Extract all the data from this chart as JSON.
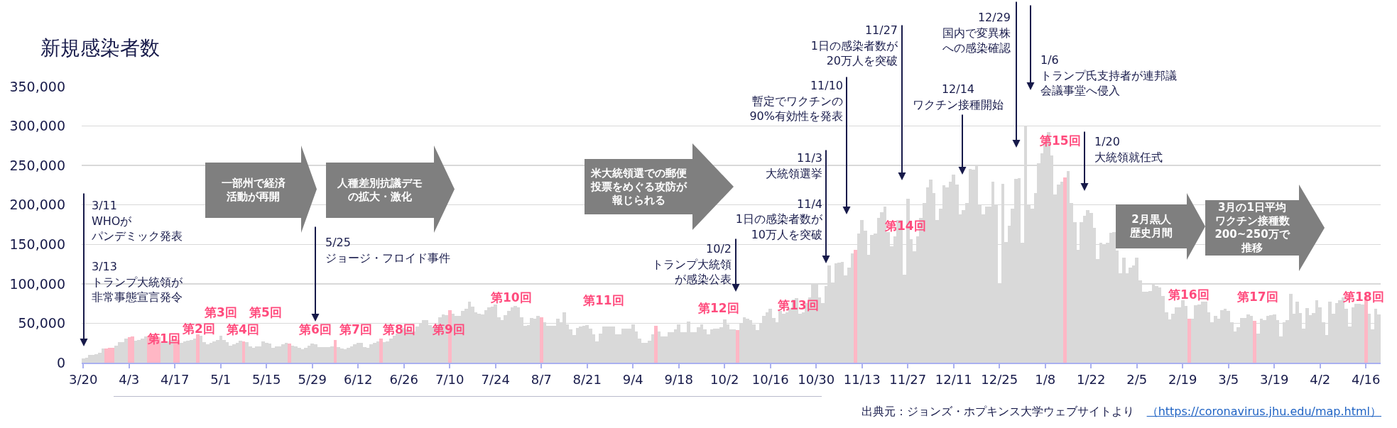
{
  "chart_data": {
    "type": "bar",
    "title": "新規感染者数",
    "categories": [
      "3/20",
      null,
      null,
      null,
      null,
      null,
      null,
      null,
      null,
      null,
      null,
      null,
      null,
      null,
      "4/3",
      null,
      null,
      null,
      null,
      null,
      null,
      null,
      null,
      null,
      null,
      null,
      null,
      null,
      "4/17",
      null,
      null,
      null,
      null,
      null,
      null,
      null,
      null,
      null,
      null,
      null,
      null,
      null,
      "5/1",
      null,
      null,
      null,
      null,
      null,
      null,
      null,
      null,
      null,
      null,
      null,
      null,
      null,
      "5/15",
      null,
      null,
      null,
      null,
      null,
      null,
      null,
      null,
      null,
      null,
      null,
      null,
      null,
      "5/29",
      null,
      null,
      null,
      null,
      null,
      null,
      null,
      null,
      null,
      null,
      null,
      null,
      null,
      "6/12",
      null,
      null,
      null,
      null,
      null,
      null,
      null,
      null,
      null,
      null,
      null,
      null,
      null,
      "6/26",
      null,
      null,
      null,
      null,
      null,
      null,
      null,
      null,
      null,
      null,
      null,
      null,
      null,
      "7/10",
      null,
      null,
      null,
      null,
      null,
      null,
      null,
      null,
      null,
      null,
      null,
      null,
      null,
      "7/24",
      null,
      null,
      null,
      null,
      null,
      null,
      null,
      null,
      null,
      null,
      null,
      null,
      null,
      "8/7",
      null,
      null,
      null,
      null,
      null,
      null,
      null,
      null,
      null,
      null,
      null,
      null,
      null,
      "8/21",
      null,
      null,
      null,
      null,
      null,
      null,
      null,
      null,
      null,
      null,
      null,
      null,
      null,
      "9/4",
      null,
      null,
      null,
      null,
      null,
      null,
      null,
      null,
      null,
      null,
      null,
      null,
      null,
      "9/18",
      null,
      null,
      null,
      null,
      null,
      null,
      null,
      null,
      null,
      null,
      null,
      null,
      null,
      "10/2",
      null,
      null,
      null,
      null,
      null,
      null,
      null,
      null,
      null,
      null,
      null,
      null,
      null,
      "10/16",
      null,
      null,
      null,
      null,
      null,
      null,
      null,
      null,
      null,
      null,
      null,
      null,
      null,
      "10/30",
      null,
      null,
      null,
      null,
      null,
      null,
      null,
      null,
      null,
      null,
      null,
      null,
      null,
      "11/13",
      null,
      null,
      null,
      null,
      null,
      null,
      null,
      null,
      null,
      null,
      null,
      null,
      null,
      "11/27",
      null,
      null,
      null,
      null,
      null,
      null,
      null,
      null,
      null,
      null,
      null,
      null,
      null,
      "12/11",
      null,
      null,
      null,
      null,
      null,
      null,
      null,
      null,
      null,
      null,
      null,
      null,
      null,
      "12/25",
      null,
      null,
      null,
      null,
      null,
      null,
      null,
      null,
      null,
      null,
      null,
      null,
      null,
      "1/8",
      null,
      null,
      null,
      null,
      null,
      null,
      null,
      null,
      null,
      null,
      null,
      null,
      null,
      "1/22",
      null,
      null,
      null,
      null,
      null,
      null,
      null,
      null,
      null,
      null,
      null,
      null,
      null,
      "2/5",
      null,
      null,
      null,
      null,
      null,
      null,
      null,
      null,
      null,
      null,
      null,
      null,
      null,
      "2/19",
      null,
      null,
      null,
      null,
      null,
      null,
      null,
      null,
      null,
      null,
      null,
      null,
      null,
      "3/5",
      null,
      null,
      null,
      null,
      null,
      null,
      null,
      null,
      null,
      null,
      null,
      null,
      null,
      "3/19",
      null,
      null,
      null,
      null,
      null,
      null,
      null,
      null,
      null,
      null,
      null,
      null,
      null,
      "4/2",
      null,
      null,
      null,
      null,
      null,
      null,
      null,
      null,
      null,
      null,
      null,
      null,
      null,
      "4/16",
      null,
      null,
      null,
      null
    ],
    "values": [
      5000,
      6000,
      10000,
      10000,
      11000,
      13000,
      18000,
      18000,
      19000,
      19000,
      22000,
      26000,
      26000,
      31000,
      32000,
      33000,
      28000,
      29000,
      31000,
      33000,
      34000,
      34000,
      33000,
      32000,
      26000,
      26000,
      27000,
      29000,
      30000,
      29000,
      25000,
      27000,
      28000,
      29000,
      31000,
      36000,
      34000,
      26000,
      23000,
      25000,
      27000,
      29000,
      34000,
      29000,
      26000,
      22000,
      23000,
      25000,
      28000,
      27000,
      26000,
      21000,
      19000,
      21000,
      21000,
      27000,
      25000,
      24000,
      19000,
      21000,
      21000,
      23000,
      25000,
      24000,
      22000,
      21000,
      19000,
      17000,
      19000,
      22000,
      24000,
      23000,
      20000,
      20000,
      20000,
      20000,
      21000,
      29000,
      20000,
      18000,
      17000,
      19000,
      21000,
      23000,
      25000,
      25000,
      20000,
      19000,
      23000,
      25000,
      27000,
      31000,
      26000,
      27000,
      31000,
      34000,
      37000,
      38000,
      44000,
      42000,
      41000,
      40000,
      46000,
      50000,
      54000,
      54000,
      48000,
      45000,
      48000,
      58000,
      61000,
      60000,
      67000,
      62000,
      59000,
      59000,
      66000,
      68000,
      77000,
      71000,
      64000,
      62000,
      61000,
      67000,
      70000,
      71000,
      74000,
      58000,
      54000,
      60000,
      66000,
      70000,
      72000,
      70000,
      58000,
      47000,
      48000,
      57000,
      56000,
      59000,
      58000,
      51000,
      47000,
      47000,
      47000,
      56000,
      51000,
      64000,
      49000,
      42000,
      35000,
      44000,
      46000,
      47000,
      48000,
      43000,
      36000,
      27000,
      37000,
      46000,
      46000,
      46000,
      46000,
      36000,
      36000,
      43000,
      43000,
      43000,
      49000,
      40000,
      31000,
      25000,
      25000,
      28000,
      36000,
      47000,
      40000,
      33000,
      33000,
      39000,
      39000,
      42000,
      49000,
      39000,
      39000,
      52000,
      39000,
      39000,
      45000,
      49000,
      42000,
      36000,
      42000,
      43000,
      43000,
      45000,
      55000,
      49000,
      42000,
      42000,
      41000,
      50000,
      58000,
      56000,
      54000,
      49000,
      41000,
      50000,
      59000,
      64000,
      68000,
      57000,
      51000,
      66000,
      62000,
      64000,
      69000,
      80000,
      82000,
      62000,
      64000,
      76000,
      83000,
      99000,
      100000,
      83000,
      76000,
      97000,
      123000,
      102000,
      126000,
      127000,
      128000,
      111000,
      121000,
      139000,
      143000,
      164000,
      181000,
      167000,
      137000,
      162000,
      164000,
      184000,
      191000,
      198000,
      166000,
      148000,
      160000,
      181000,
      181000,
      112000,
      208000,
      157000,
      141000,
      160000,
      184000,
      202000,
      222000,
      232000,
      215000,
      181000,
      195000,
      225000,
      222000,
      229000,
      238000,
      226000,
      188000,
      193000,
      202000,
      246000,
      245000,
      250000,
      200000,
      188000,
      198000,
      198000,
      229000,
      200000,
      99000,
      227000,
      153000,
      174000,
      195000,
      233000,
      234000,
      152000,
      300000,
      200000,
      195000,
      215000,
      253000,
      265000,
      277000,
      292000,
      263000,
      213000,
      226000,
      229000,
      235000,
      243000,
      202000,
      178000,
      143000,
      178000,
      186000,
      193000,
      190000,
      171000,
      131000,
      152000,
      150000,
      152000,
      165000,
      166000,
      142000,
      113000,
      133000,
      113000,
      121000,
      123000,
      133000,
      104000,
      90000,
      90000,
      91000,
      99000,
      97000,
      95000,
      85000,
      64000,
      55000,
      62000,
      70000,
      70000,
      79000,
      72000,
      56000,
      56000,
      73000,
      74000,
      77000,
      77000,
      64000,
      51000,
      59000,
      56000,
      67000,
      68000,
      66000,
      51000,
      40000,
      45000,
      57000,
      57000,
      61000,
      59000,
      53000,
      37000,
      56000,
      54000,
      59000,
      60000,
      61000,
      54000,
      33000,
      51000,
      54000,
      87000,
      62000,
      77000,
      63000,
      43000,
      69000,
      60000,
      63000,
      79000,
      70000,
      51000,
      35000,
      77000,
      62000,
      76000,
      79000,
      83000,
      68000,
      46000,
      70000,
      75000,
      75000,
      74000,
      85000,
      62000,
      42000,
      68000,
      61000
    ],
    "colors": [
      "#d9d9d9",
      "#d9d9d9",
      "#d9d9d9",
      "#d9d9d9",
      "#d9d9d9",
      "#d9d9d9",
      "#d9d9d9",
      "#ffb7c5",
      "#ffb7c5",
      "#ffb7c5",
      "#d9d9d9",
      "#d9d9d9",
      "#d9d9d9",
      "#d9d9d9",
      "#ffb7c5",
      "#ffb7c5",
      "#d9d9d9",
      "#d9d9d9",
      "#d9d9d9",
      "#d9d9d9",
      "#ffb7c5",
      "#ffb7c5",
      "#ffb7c5",
      "#ffb7c5",
      "#d9d9d9",
      "#d9d9d9",
      "#d9d9d9",
      "#d9d9d9",
      "#ffb7c5",
      "#ffb7c5",
      "#d9d9d9",
      "#d9d9d9",
      "#d9d9d9",
      "#d9d9d9",
      "#d9d9d9",
      "#ffb7c5",
      "#d9d9d9",
      "#d9d9d9",
      "#d9d9d9",
      "#d9d9d9",
      "#d9d9d9",
      "#d9d9d9",
      "#d9d9d9",
      "#d9d9d9",
      "#d9d9d9",
      "#d9d9d9",
      "#d9d9d9",
      "#d9d9d9",
      "#d9d9d9",
      "#ffb7c5",
      "#d9d9d9",
      "#d9d9d9",
      "#d9d9d9",
      "#d9d9d9",
      "#d9d9d9",
      "#d9d9d9",
      "#d9d9d9",
      "#d9d9d9",
      "#d9d9d9",
      "#d9d9d9",
      "#d9d9d9",
      "#d9d9d9",
      "#d9d9d9",
      "#ffb7c5",
      "#d9d9d9",
      "#d9d9d9",
      "#d9d9d9",
      "#d9d9d9",
      "#d9d9d9",
      "#d9d9d9",
      "#d9d9d9",
      "#d9d9d9",
      "#d9d9d9",
      "#d9d9d9",
      "#d9d9d9",
      "#d9d9d9",
      "#d9d9d9",
      "#ffb7c5",
      "#d9d9d9",
      "#d9d9d9",
      "#d9d9d9",
      "#d9d9d9",
      "#d9d9d9",
      "#d9d9d9",
      "#d9d9d9",
      "#d9d9d9",
      "#d9d9d9",
      "#d9d9d9",
      "#d9d9d9",
      "#d9d9d9",
      "#d9d9d9",
      "#ffb7c5",
      "#d9d9d9",
      "#d9d9d9",
      "#d9d9d9",
      "#d9d9d9",
      "#d9d9d9",
      "#d9d9d9",
      "#d9d9d9",
      "#d9d9d9",
      "#d9d9d9",
      "#d9d9d9",
      "#d9d9d9",
      "#d9d9d9",
      "#d9d9d9",
      "#d9d9d9",
      "#d9d9d9",
      "#d9d9d9",
      "#d9d9d9",
      "#d9d9d9",
      "#d9d9d9",
      "#d9d9d9",
      "#ffb7c5",
      "#d9d9d9",
      "#d9d9d9",
      "#d9d9d9",
      "#d9d9d9",
      "#d9d9d9",
      "#d9d9d9",
      "#d9d9d9",
      "#d9d9d9",
      "#d9d9d9",
      "#d9d9d9",
      "#d9d9d9",
      "#d9d9d9",
      "#d9d9d9",
      "#d9d9d9",
      "#d9d9d9",
      "#d9d9d9",
      "#d9d9d9",
      "#d9d9d9",
      "#d9d9d9",
      "#d9d9d9",
      "#d9d9d9",
      "#d9d9d9",
      "#d9d9d9",
      "#d9d9d9",
      "#d9d9d9",
      "#d9d9d9",
      "#d9d9d9",
      "#ffb7c5",
      "#d9d9d9",
      "#d9d9d9",
      "#d9d9d9",
      "#d9d9d9",
      "#d9d9d9",
      "#d9d9d9",
      "#d9d9d9",
      "#d9d9d9",
      "#d9d9d9",
      "#d9d9d9",
      "#d9d9d9",
      "#d9d9d9",
      "#d9d9d9",
      "#d9d9d9",
      "#d9d9d9",
      "#d9d9d9",
      "#d9d9d9",
      "#d9d9d9",
      "#d9d9d9",
      "#d9d9d9",
      "#d9d9d9",
      "#d9d9d9",
      "#d9d9d9",
      "#d9d9d9",
      "#d9d9d9",
      "#d9d9d9",
      "#d9d9d9",
      "#d9d9d9",
      "#d9d9d9",
      "#d9d9d9",
      "#d9d9d9",
      "#d9d9d9",
      "#d9d9d9",
      "#d9d9d9",
      "#ffb7c5",
      "#d9d9d9",
      "#d9d9d9",
      "#d9d9d9",
      "#d9d9d9",
      "#d9d9d9",
      "#d9d9d9",
      "#d9d9d9",
      "#d9d9d9",
      "#d9d9d9",
      "#d9d9d9",
      "#d9d9d9",
      "#d9d9d9",
      "#d9d9d9",
      "#d9d9d9",
      "#d9d9d9",
      "#d9d9d9",
      "#d9d9d9",
      "#d9d9d9",
      "#d9d9d9",
      "#d9d9d9",
      "#d9d9d9",
      "#d9d9d9",
      "#d9d9d9",
      "#d9d9d9",
      "#ffb7c5",
      "#d9d9d9",
      "#d9d9d9",
      "#d9d9d9",
      "#d9d9d9",
      "#d9d9d9",
      "#d9d9d9",
      "#d9d9d9",
      "#d9d9d9",
      "#d9d9d9",
      "#d9d9d9",
      "#d9d9d9",
      "#d9d9d9",
      "#d9d9d9",
      "#d9d9d9",
      "#d9d9d9",
      "#d9d9d9",
      "#d9d9d9",
      "#d9d9d9",
      "#d9d9d9",
      "#d9d9d9",
      "#d9d9d9",
      "#d9d9d9",
      "#d9d9d9",
      "#d9d9d9",
      "#d9d9d9",
      "#d9d9d9",
      "#d9d9d9",
      "#d9d9d9",
      "#d9d9d9",
      "#d9d9d9",
      "#d9d9d9",
      "#d9d9d9",
      "#d9d9d9",
      "#d9d9d9",
      "#d9d9d9",
      "#ffb7c5",
      "#d9d9d9",
      "#d9d9d9",
      "#d9d9d9",
      "#d9d9d9",
      "#d9d9d9",
      "#d9d9d9",
      "#d9d9d9",
      "#d9d9d9",
      "#d9d9d9",
      "#d9d9d9",
      "#d9d9d9",
      "#d9d9d9",
      "#d9d9d9",
      "#d9d9d9",
      "#d9d9d9",
      "#d9d9d9",
      "#d9d9d9",
      "#d9d9d9",
      "#d9d9d9",
      "#d9d9d9",
      "#d9d9d9",
      "#d9d9d9",
      "#d9d9d9",
      "#d9d9d9",
      "#d9d9d9",
      "#d9d9d9",
      "#d9d9d9",
      "#d9d9d9",
      "#d9d9d9",
      "#d9d9d9",
      "#d9d9d9",
      "#d9d9d9",
      "#d9d9d9",
      "#d9d9d9",
      "#d9d9d9",
      "#d9d9d9",
      "#d9d9d9",
      "#d9d9d9",
      "#d9d9d9",
      "#d9d9d9",
      "#d9d9d9",
      "#d9d9d9",
      "#d9d9d9",
      "#d9d9d9",
      "#d9d9d9",
      "#d9d9d9",
      "#d9d9d9",
      "#d9d9d9",
      "#d9d9d9",
      "#d9d9d9",
      "#d9d9d9",
      "#d9d9d9",
      "#d9d9d9",
      "#d9d9d9",
      "#d9d9d9",
      "#d9d9d9",
      "#d9d9d9",
      "#d9d9d9",
      "#d9d9d9",
      "#d9d9d9",
      "#d9d9d9",
      "#d9d9d9",
      "#d9d9d9",
      "#ffb7c5",
      "#d9d9d9",
      "#d9d9d9",
      "#d9d9d9",
      "#d9d9d9",
      "#d9d9d9",
      "#d9d9d9",
      "#d9d9d9",
      "#d9d9d9",
      "#d9d9d9",
      "#d9d9d9",
      "#d9d9d9",
      "#d9d9d9",
      "#d9d9d9",
      "#d9d9d9",
      "#d9d9d9",
      "#d9d9d9",
      "#d9d9d9",
      "#d9d9d9",
      "#d9d9d9",
      "#d9d9d9",
      "#d9d9d9",
      "#d9d9d9",
      "#d9d9d9",
      "#d9d9d9",
      "#d9d9d9",
      "#d9d9d9",
      "#d9d9d9",
      "#d9d9d9",
      "#d9d9d9",
      "#d9d9d9",
      "#d9d9d9",
      "#d9d9d9",
      "#d9d9d9",
      "#d9d9d9",
      "#d9d9d9",
      "#d9d9d9",
      "#d9d9d9",
      "#ffb7c5",
      "#d9d9d9",
      "#d9d9d9",
      "#d9d9d9",
      "#d9d9d9",
      "#d9d9d9",
      "#d9d9d9",
      "#d9d9d9",
      "#d9d9d9",
      "#d9d9d9",
      "#d9d9d9",
      "#d9d9d9",
      "#d9d9d9",
      "#d9d9d9",
      "#d9d9d9",
      "#d9d9d9",
      "#d9d9d9",
      "#d9d9d9",
      "#d9d9d9",
      "#d9d9d9",
      "#ffb7c5",
      "#d9d9d9",
      "#d9d9d9",
      "#d9d9d9",
      "#d9d9d9",
      "#d9d9d9",
      "#d9d9d9",
      "#d9d9d9",
      "#d9d9d9",
      "#d9d9d9",
      "#d9d9d9",
      "#d9d9d9",
      "#d9d9d9",
      "#d9d9d9",
      "#d9d9d9",
      "#d9d9d9",
      "#d9d9d9",
      "#d9d9d9",
      "#d9d9d9",
      "#d9d9d9",
      "#d9d9d9",
      "#d9d9d9",
      "#d9d9d9",
      "#d9d9d9",
      "#d9d9d9",
      "#d9d9d9",
      "#d9d9d9",
      "#d9d9d9",
      "#d9d9d9",
      "#d9d9d9",
      "#d9d9d9",
      "#d9d9d9",
      "#d9d9d9",
      "#d9d9d9",
      "#ffb7c5",
      "#d9d9d9",
      "#d9d9d9",
      "#d9d9d9",
      "#d9d9d9"
    ],
    "ylim": [
      0,
      350000
    ],
    "yticks": [
      0,
      {
        "value": 50000,
        "label": "50,000"
      },
      {
        "value": 100000,
        "label": "100,000"
      },
      {
        "value": 150000,
        "label": "150,000"
      },
      {
        "value": 200000,
        "label": "200,000"
      },
      {
        "value": 250000,
        "label": "250,000"
      },
      {
        "value": 300000,
        "label": "300,000"
      },
      {
        "value": 350000,
        "label": "350,000"
      }
    ],
    "grid": "y",
    "annotations": [
      "3/11\nWHOがパンデミック発表\n\n3/13\nトランプ大統領が非常事態宣言発令",
      "5/25\nジョージ・フロイド事件",
      "10/2\nトランプ大統領が感染公表",
      "11/3\n大統領選挙\n\n11/4\n1日の感染者数が\n10万人を突破",
      "11/10\n暫定でワクチンの\n90%有効性を発表",
      "11/27\n1日の感染者数が\n20万人を突破",
      "12/14\nワクチン接種開始",
      "12/29\n国内で変異株への感染確認",
      "1/6\nトランプ氏支持者が連邦議会議事堂へ侵入",
      "1/20\n大統領就任式",
      "一部州で経済活動が再開",
      "人種差別抗議デモの拡大・激化",
      "米大統領選での郵便投票をめぐる攻防が報じられる",
      "2月黒人歴史月間",
      "3月の1日平均ワクチン接種数\n200~250万で推移",
      "第1回",
      "第2回",
      "第3回",
      "第4回",
      "第5回",
      "第6回",
      "第7回",
      "第8回",
      "第9回",
      "第10回",
      "第11回",
      "第12回",
      "第13回",
      "第14回",
      "第15回",
      "第16回",
      "第17回",
      "第18回",
      "出典元：ジョンズ・ホプキンス大学ウェブサイトより",
      "（https://coronavirus.jhu.edu/map.html）"
    ]
  }
}
